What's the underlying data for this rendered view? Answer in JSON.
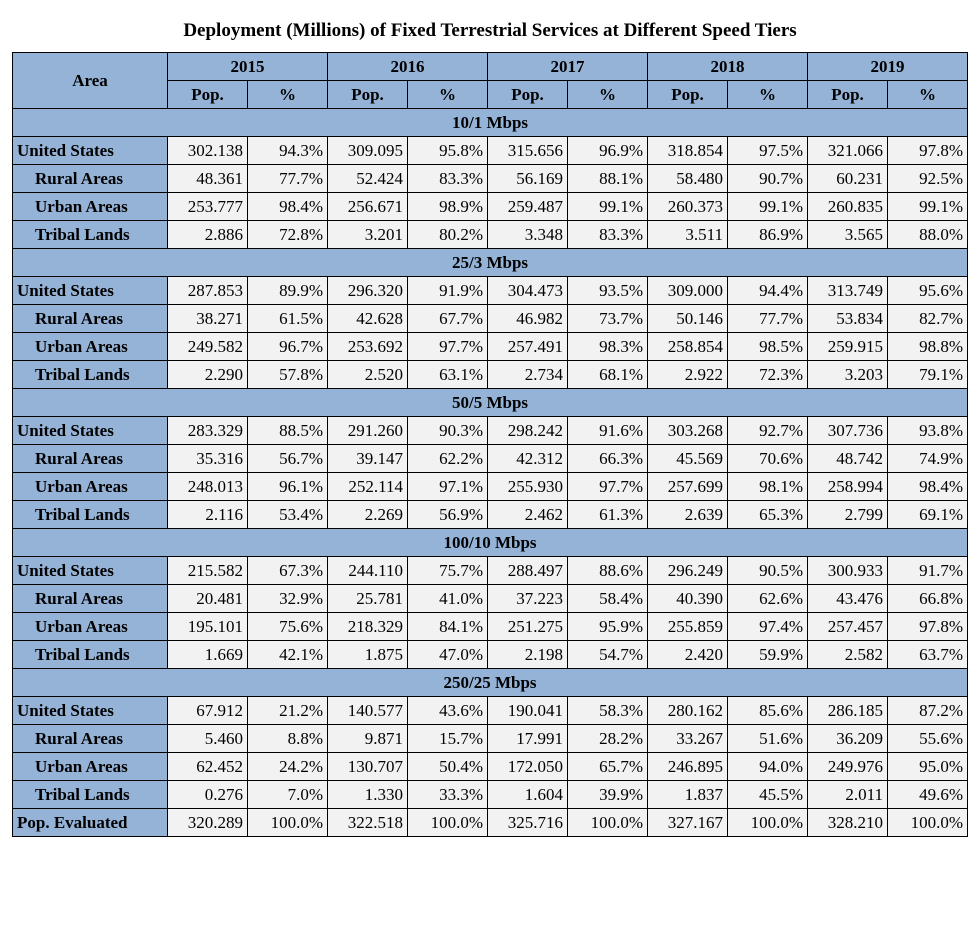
{
  "title": "Deployment (Millions) of Fixed Terrestrial Services at Different Speed Tiers",
  "colors": {
    "header_bg": "#95b3d7",
    "cell_bg": "#f2f2f2",
    "border": "#000000",
    "text": "#000000",
    "page_bg": "#ffffff"
  },
  "typography": {
    "title_fontsize_pt": 15,
    "cell_fontsize_pt": 13,
    "font_family": "Times New Roman"
  },
  "years": [
    "2015",
    "2016",
    "2017",
    "2018",
    "2019"
  ],
  "subcols": [
    "Pop.",
    "%"
  ],
  "area_header": "Area",
  "sections": [
    {
      "label": "10/1 Mbps",
      "rows": [
        {
          "label": "United States",
          "indent": 0,
          "values": [
            "302.138",
            "94.3%",
            "309.095",
            "95.8%",
            "315.656",
            "96.9%",
            "318.854",
            "97.5%",
            "321.066",
            "97.8%"
          ]
        },
        {
          "label": "Rural Areas",
          "indent": 1,
          "values": [
            "48.361",
            "77.7%",
            "52.424",
            "83.3%",
            "56.169",
            "88.1%",
            "58.480",
            "90.7%",
            "60.231",
            "92.5%"
          ]
        },
        {
          "label": "Urban Areas",
          "indent": 1,
          "values": [
            "253.777",
            "98.4%",
            "256.671",
            "98.9%",
            "259.487",
            "99.1%",
            "260.373",
            "99.1%",
            "260.835",
            "99.1%"
          ]
        },
        {
          "label": "Tribal Lands",
          "indent": 1,
          "values": [
            "2.886",
            "72.8%",
            "3.201",
            "80.2%",
            "3.348",
            "83.3%",
            "3.511",
            "86.9%",
            "3.565",
            "88.0%"
          ]
        }
      ]
    },
    {
      "label": "25/3 Mbps",
      "rows": [
        {
          "label": "United States",
          "indent": 0,
          "values": [
            "287.853",
            "89.9%",
            "296.320",
            "91.9%",
            "304.473",
            "93.5%",
            "309.000",
            "94.4%",
            "313.749",
            "95.6%"
          ]
        },
        {
          "label": "Rural Areas",
          "indent": 1,
          "values": [
            "38.271",
            "61.5%",
            "42.628",
            "67.7%",
            "46.982",
            "73.7%",
            "50.146",
            "77.7%",
            "53.834",
            "82.7%"
          ]
        },
        {
          "label": "Urban Areas",
          "indent": 1,
          "values": [
            "249.582",
            "96.7%",
            "253.692",
            "97.7%",
            "257.491",
            "98.3%",
            "258.854",
            "98.5%",
            "259.915",
            "98.8%"
          ]
        },
        {
          "label": "Tribal Lands",
          "indent": 1,
          "values": [
            "2.290",
            "57.8%",
            "2.520",
            "63.1%",
            "2.734",
            "68.1%",
            "2.922",
            "72.3%",
            "3.203",
            "79.1%"
          ]
        }
      ]
    },
    {
      "label": "50/5 Mbps",
      "rows": [
        {
          "label": "United States",
          "indent": 0,
          "values": [
            "283.329",
            "88.5%",
            "291.260",
            "90.3%",
            "298.242",
            "91.6%",
            "303.268",
            "92.7%",
            "307.736",
            "93.8%"
          ]
        },
        {
          "label": "Rural Areas",
          "indent": 1,
          "values": [
            "35.316",
            "56.7%",
            "39.147",
            "62.2%",
            "42.312",
            "66.3%",
            "45.569",
            "70.6%",
            "48.742",
            "74.9%"
          ]
        },
        {
          "label": "Urban Areas",
          "indent": 1,
          "values": [
            "248.013",
            "96.1%",
            "252.114",
            "97.1%",
            "255.930",
            "97.7%",
            "257.699",
            "98.1%",
            "258.994",
            "98.4%"
          ]
        },
        {
          "label": "Tribal Lands",
          "indent": 1,
          "values": [
            "2.116",
            "53.4%",
            "2.269",
            "56.9%",
            "2.462",
            "61.3%",
            "2.639",
            "65.3%",
            "2.799",
            "69.1%"
          ]
        }
      ]
    },
    {
      "label": "100/10 Mbps",
      "rows": [
        {
          "label": "United States",
          "indent": 0,
          "values": [
            "215.582",
            "67.3%",
            "244.110",
            "75.7%",
            "288.497",
            "88.6%",
            "296.249",
            "90.5%",
            "300.933",
            "91.7%"
          ]
        },
        {
          "label": "Rural Areas",
          "indent": 1,
          "values": [
            "20.481",
            "32.9%",
            "25.781",
            "41.0%",
            "37.223",
            "58.4%",
            "40.390",
            "62.6%",
            "43.476",
            "66.8%"
          ]
        },
        {
          "label": "Urban Areas",
          "indent": 1,
          "values": [
            "195.101",
            "75.6%",
            "218.329",
            "84.1%",
            "251.275",
            "95.9%",
            "255.859",
            "97.4%",
            "257.457",
            "97.8%"
          ]
        },
        {
          "label": "Tribal Lands",
          "indent": 1,
          "values": [
            "1.669",
            "42.1%",
            "1.875",
            "47.0%",
            "2.198",
            "54.7%",
            "2.420",
            "59.9%",
            "2.582",
            "63.7%"
          ]
        }
      ]
    },
    {
      "label": "250/25 Mbps",
      "rows": [
        {
          "label": "United States",
          "indent": 0,
          "values": [
            "67.912",
            "21.2%",
            "140.577",
            "43.6%",
            "190.041",
            "58.3%",
            "280.162",
            "85.6%",
            "286.185",
            "87.2%"
          ]
        },
        {
          "label": "Rural Areas",
          "indent": 1,
          "values": [
            "5.460",
            "8.8%",
            "9.871",
            "15.7%",
            "17.991",
            "28.2%",
            "33.267",
            "51.6%",
            "36.209",
            "55.6%"
          ]
        },
        {
          "label": "Urban Areas",
          "indent": 1,
          "values": [
            "62.452",
            "24.2%",
            "130.707",
            "50.4%",
            "172.050",
            "65.7%",
            "246.895",
            "94.0%",
            "249.976",
            "95.0%"
          ]
        },
        {
          "label": "Tribal Lands",
          "indent": 1,
          "values": [
            "0.276",
            "7.0%",
            "1.330",
            "33.3%",
            "1.604",
            "39.9%",
            "1.837",
            "45.5%",
            "2.011",
            "49.6%"
          ]
        }
      ]
    }
  ],
  "footer_row": {
    "label": "Pop. Evaluated",
    "indent": 0,
    "values": [
      "320.289",
      "100.0%",
      "322.518",
      "100.0%",
      "325.716",
      "100.0%",
      "327.167",
      "100.0%",
      "328.210",
      "100.0%"
    ]
  }
}
